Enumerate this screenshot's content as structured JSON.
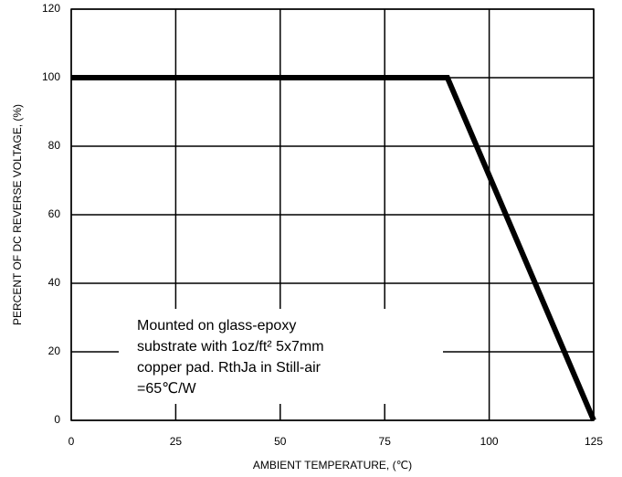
{
  "chart_data": {
    "type": "line",
    "x_label": "AMBIENT TEMPERATURE, (℃)",
    "y_label": "PERCENT OF DC REVERSE VOLTAGE, (%)",
    "x": [
      0,
      90,
      125
    ],
    "values": [
      100,
      100,
      0
    ],
    "color": "#000000",
    "xlim": [
      0,
      125
    ],
    "xticks": [
      0,
      25,
      50,
      75,
      100,
      125
    ],
    "ylim": [
      0,
      120
    ],
    "yticks": [
      0,
      20,
      40,
      60,
      80,
      100,
      120
    ],
    "grid": true,
    "annotation": [
      "Mounted on glass-epoxy",
      "substrate with 1oz/ft² 5x7mm",
      "copper pad. RthJa in Still-air",
      "=65℃/W"
    ]
  }
}
